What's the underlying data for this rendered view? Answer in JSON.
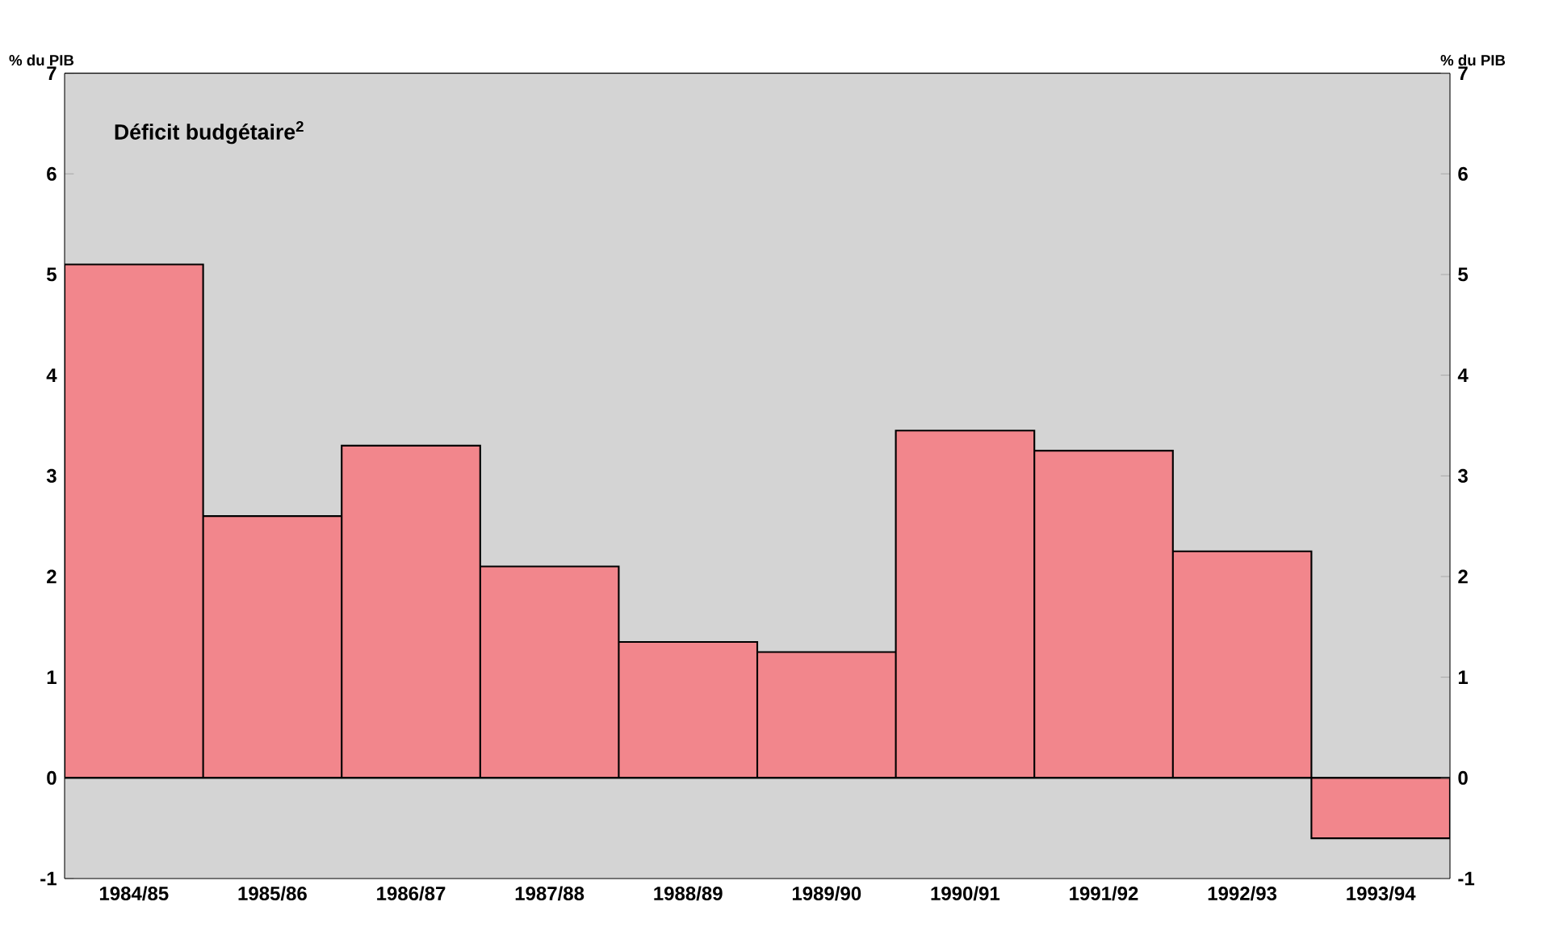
{
  "chart_data": {
    "type": "bar",
    "categories": [
      "1984/85",
      "1985/86",
      "1986/87",
      "1987/88",
      "1988/89",
      "1989/90",
      "1990/91",
      "1991/92",
      "1992/93",
      "1993/94"
    ],
    "values": [
      5.1,
      2.6,
      3.3,
      2.1,
      1.35,
      1.25,
      3.45,
      3.25,
      2.25,
      -0.6
    ],
    "color": "#f2868c",
    "ylim": [
      -1,
      7
    ],
    "yticks": [
      -1,
      0,
      1,
      2,
      3,
      4,
      5,
      6,
      7
    ],
    "y2lim": [
      -1,
      7
    ],
    "y2ticks": [
      -1,
      0,
      1,
      2,
      3,
      4,
      5,
      6,
      7
    ],
    "ylabel": "% du PIB",
    "y2label": "% du PIB",
    "annotations": [
      "Déficit budgétaire$^{2}$"
    ]
  }
}
